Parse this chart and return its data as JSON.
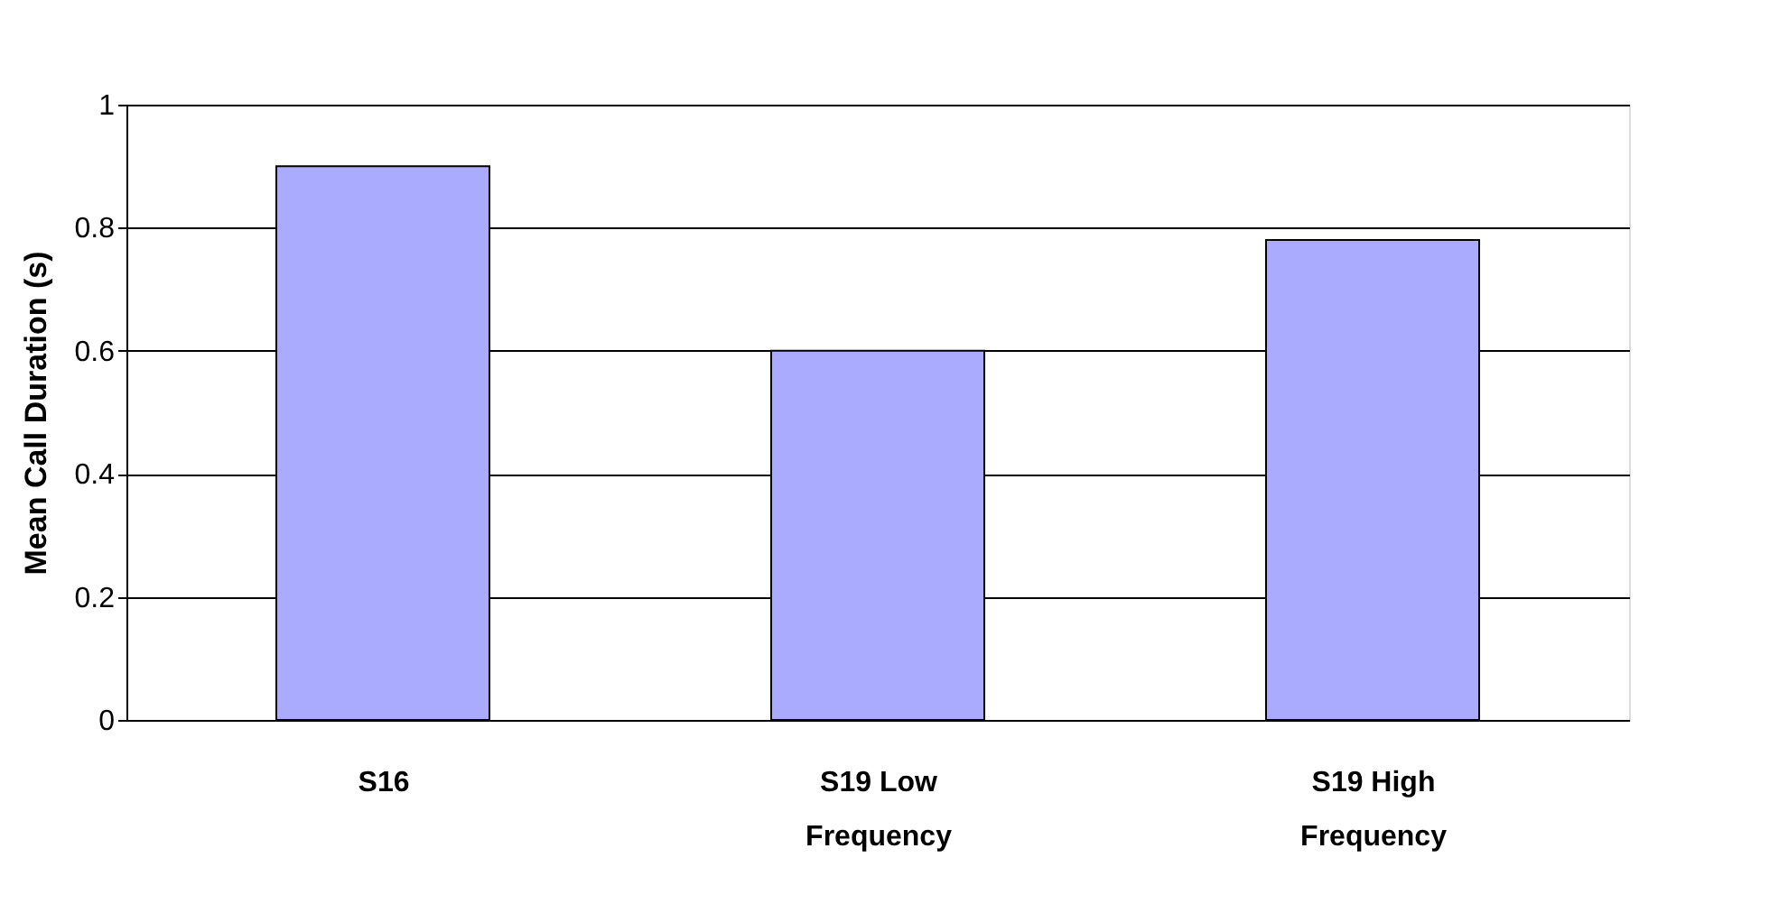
{
  "chart_data": {
    "type": "bar",
    "ylabel": "Mean Call Duration (s)",
    "categories": [
      "S16",
      "S19 Low Frequency",
      "S19 High Frequency"
    ],
    "values": [
      0.9,
      0.6,
      0.78
    ],
    "color": "#aaaaff",
    "ylim": [
      0,
      1
    ],
    "yticks": [
      0,
      0.2,
      0.4,
      0.6,
      0.8,
      1
    ],
    "grid": "y"
  }
}
